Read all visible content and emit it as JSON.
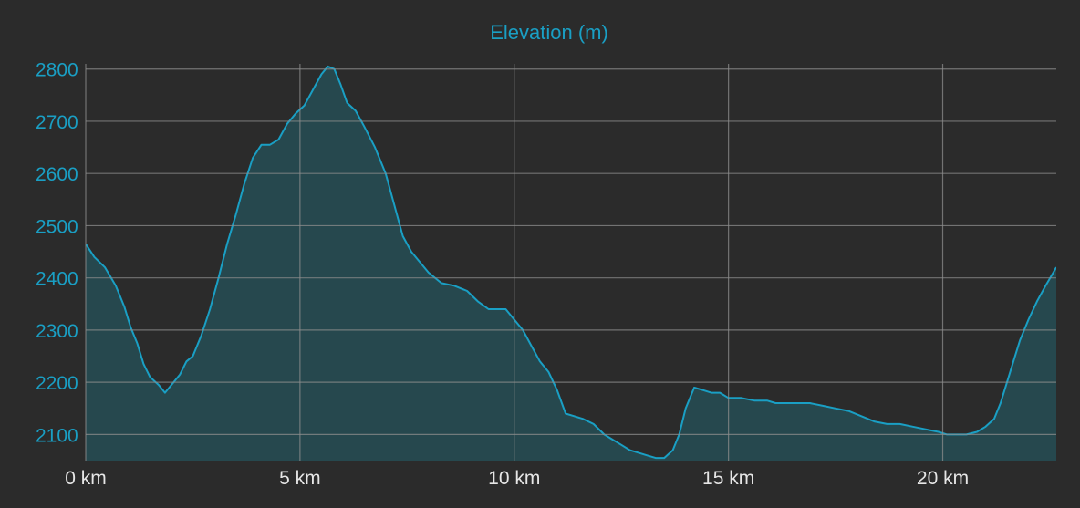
{
  "colors": {
    "background": "#2b2b2b",
    "grid": "#8c8c8c",
    "line": "#1a9fc4",
    "fill": "#264a50",
    "axis_text_y": "#1a9fc4",
    "axis_text_x": "#e6e6e6",
    "title": "#1a9fc4"
  },
  "chart_data": {
    "type": "area",
    "title": "Elevation (m)",
    "xlabel": "",
    "ylabel": "",
    "xunit": "km",
    "xlim": [
      0,
      22.65
    ],
    "ylim": [
      2050,
      2810
    ],
    "x_ticks": [
      0,
      5,
      10,
      15,
      20
    ],
    "x_tick_labels": [
      "0 km",
      "5 km",
      "10 km",
      "15 km",
      "20 km"
    ],
    "y_ticks": [
      2100,
      2200,
      2300,
      2400,
      2500,
      2600,
      2700,
      2800
    ],
    "y_tick_labels": [
      "2100",
      "2200",
      "2300",
      "2400",
      "2500",
      "2600",
      "2700",
      "2800"
    ],
    "grid": true,
    "series": [
      {
        "name": "",
        "x": [
          0,
          0.2,
          0.45,
          0.7,
          0.9,
          1.05,
          1.2,
          1.35,
          1.5,
          1.7,
          1.85,
          2.0,
          2.2,
          2.35,
          2.5,
          2.7,
          2.9,
          3.1,
          3.3,
          3.5,
          3.7,
          3.9,
          4.1,
          4.3,
          4.5,
          4.7,
          4.9,
          5.1,
          5.3,
          5.5,
          5.65,
          5.8,
          5.95,
          6.1,
          6.3,
          6.5,
          6.75,
          7.0,
          7.2,
          7.4,
          7.6,
          7.8,
          8.0,
          8.3,
          8.6,
          8.9,
          9.15,
          9.4,
          9.6,
          9.8,
          10.0,
          10.2,
          10.4,
          10.6,
          10.8,
          11.0,
          11.2,
          11.4,
          11.6,
          11.85,
          12.1,
          12.3,
          12.5,
          12.7,
          12.9,
          13.1,
          13.3,
          13.5,
          13.7,
          13.85,
          14.0,
          14.2,
          14.4,
          14.6,
          14.8,
          15.0,
          15.3,
          15.6,
          15.9,
          16.1,
          16.3,
          16.6,
          16.9,
          17.2,
          17.5,
          17.8,
          18.1,
          18.4,
          18.7,
          19.0,
          19.3,
          19.6,
          19.9,
          20.1,
          20.3,
          20.55,
          20.8,
          21.0,
          21.2,
          21.35,
          21.5,
          21.65,
          21.8,
          22.0,
          22.2,
          22.4,
          22.65
        ],
        "values": [
          2465,
          2440,
          2420,
          2385,
          2345,
          2305,
          2275,
          2235,
          2210,
          2195,
          2180,
          2195,
          2215,
          2240,
          2250,
          2290,
          2340,
          2400,
          2465,
          2520,
          2580,
          2630,
          2655,
          2655,
          2665,
          2695,
          2715,
          2730,
          2760,
          2790,
          2805,
          2800,
          2770,
          2735,
          2720,
          2690,
          2650,
          2600,
          2540,
          2480,
          2450,
          2430,
          2410,
          2390,
          2385,
          2375,
          2355,
          2340,
          2340,
          2340,
          2320,
          2300,
          2270,
          2240,
          2220,
          2185,
          2140,
          2135,
          2130,
          2120,
          2100,
          2090,
          2080,
          2070,
          2065,
          2060,
          2055,
          2055,
          2070,
          2100,
          2150,
          2190,
          2185,
          2180,
          2180,
          2170,
          2170,
          2165,
          2165,
          2160,
          2160,
          2160,
          2160,
          2155,
          2150,
          2145,
          2135,
          2125,
          2120,
          2120,
          2115,
          2110,
          2105,
          2100,
          2100,
          2100,
          2105,
          2115,
          2130,
          2160,
          2200,
          2240,
          2280,
          2320,
          2355,
          2385,
          2420
        ]
      }
    ]
  }
}
